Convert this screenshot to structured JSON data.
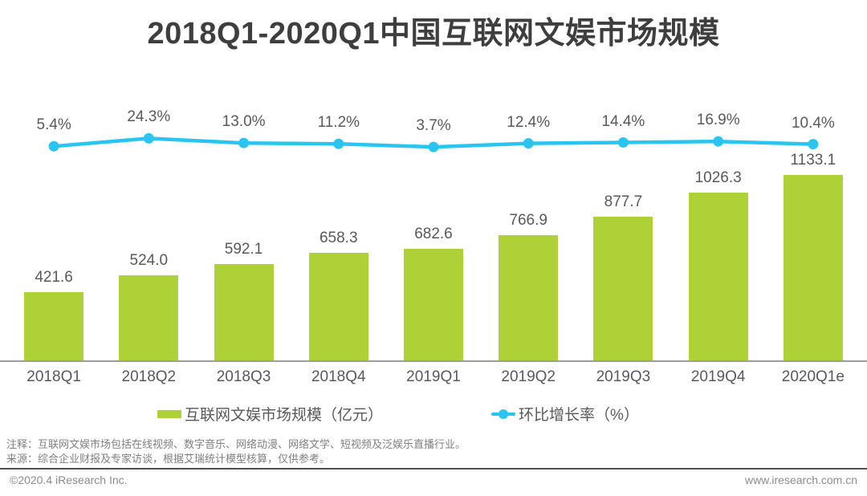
{
  "title": "2018Q1-2020Q1中国互联网文娱市场规模",
  "chart_data": {
    "type": "bar",
    "categories": [
      "2018Q1",
      "2018Q2",
      "2018Q3",
      "2018Q4",
      "2019Q1",
      "2019Q2",
      "2019Q3",
      "2019Q4",
      "2020Q1e"
    ],
    "series": [
      {
        "name": "互联网文娱市场规模（亿元）",
        "type": "bar",
        "values": [
          421.6,
          524.0,
          592.1,
          658.3,
          682.6,
          766.9,
          877.7,
          1026.3,
          1133.1
        ],
        "color": "#add136"
      },
      {
        "name": "环比增长率（%）",
        "type": "line",
        "values": [
          5.4,
          24.3,
          13.0,
          11.2,
          3.7,
          12.4,
          14.4,
          16.9,
          10.4
        ],
        "color": "#29c5f0"
      }
    ],
    "title": "2018Q1-2020Q1中国互联网文娱市场规模",
    "xlabel": "",
    "ylabel": "",
    "ylim": [
      0,
      1250
    ],
    "grid": false,
    "legend_position": "bottom",
    "data_labels": true
  },
  "legend": {
    "bar_label": "互联网文娱市场规模（亿元）",
    "line_label": "环比增长率（%）"
  },
  "notes": {
    "note": "注释：互联网文娱市场包括在线视频、数字音乐、网络动漫、网络文学、短视频及泛娱乐直播行业。",
    "source": "来源：综合企业财报及专家访谈，根据艾瑞统计模型核算，仅供参考。"
  },
  "footer": {
    "left": "©2020.4 iResearch Inc.",
    "right": "www.iresearch.com.cn"
  },
  "colors": {
    "bar": "#add136",
    "line": "#29c5f0",
    "title_text": "#3e3e3e",
    "label_text": "#595959",
    "note_text": "#7f7f7f"
  }
}
